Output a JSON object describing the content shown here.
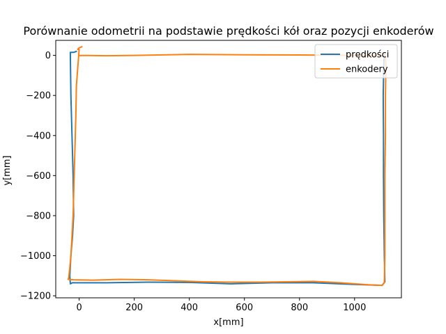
{
  "chart_data": {
    "type": "line",
    "title": "Porównanie odometrii na podstawie prędkości kół oraz pozycji enkoderów",
    "xlabel": "x[mm]",
    "ylabel": "y[mm]",
    "xlim": [
      -85,
      1170
    ],
    "ylim": [
      -1210,
      75
    ],
    "xticks": [
      0,
      200,
      400,
      600,
      800,
      1000
    ],
    "yticks": [
      -1200,
      -1000,
      -800,
      -600,
      -400,
      -200,
      0
    ],
    "legend_position": "upper right",
    "grid": false,
    "series": [
      {
        "name": "prędkości",
        "color": "#1f77b4",
        "points": [
          [
            -10,
            20
          ],
          [
            -20,
            15
          ],
          [
            -32,
            15
          ],
          [
            -32,
            0
          ],
          [
            -30,
            -200
          ],
          [
            -26,
            -400
          ],
          [
            -22,
            -600
          ],
          [
            -20,
            -800
          ],
          [
            -24,
            -900
          ],
          [
            -30,
            -1000
          ],
          [
            -34,
            -1100
          ],
          [
            -32,
            -1140
          ],
          [
            -25,
            -1135
          ],
          [
            100,
            -1135
          ],
          [
            250,
            -1132
          ],
          [
            400,
            -1133
          ],
          [
            550,
            -1140
          ],
          [
            700,
            -1135
          ],
          [
            850,
            -1135
          ],
          [
            1000,
            -1143
          ],
          [
            1100,
            -1148
          ],
          [
            1110,
            -1130
          ],
          [
            1108,
            -1000
          ],
          [
            1106,
            -800
          ],
          [
            1105,
            -600
          ],
          [
            1105,
            -400
          ],
          [
            1104,
            -200
          ],
          [
            1106,
            -50
          ],
          [
            1108,
            10
          ]
        ]
      },
      {
        "name": "enkodery",
        "color": "#ff7f0e",
        "points": [
          [
            10,
            43
          ],
          [
            0,
            38
          ],
          [
            -5,
            30
          ],
          [
            0,
            30
          ],
          [
            -10,
            -150
          ],
          [
            -12,
            -300
          ],
          [
            -15,
            -450
          ],
          [
            -18,
            -600
          ],
          [
            -20,
            -700
          ],
          [
            -22,
            -800
          ],
          [
            -26,
            -900
          ],
          [
            -30,
            -1000
          ],
          [
            -34,
            -1060
          ],
          [
            -38,
            -1110
          ],
          [
            -40,
            -1118
          ],
          [
            -20,
            -1120
          ],
          [
            50,
            -1122
          ],
          [
            150,
            -1118
          ],
          [
            250,
            -1120
          ],
          [
            350,
            -1125
          ],
          [
            450,
            -1130
          ],
          [
            550,
            -1132
          ],
          [
            650,
            -1132
          ],
          [
            750,
            -1130
          ],
          [
            850,
            -1128
          ],
          [
            950,
            -1135
          ],
          [
            1050,
            -1145
          ],
          [
            1100,
            -1148
          ],
          [
            1108,
            -1135
          ],
          [
            1110,
            -1000
          ],
          [
            1110,
            -800
          ],
          [
            1110,
            -600
          ],
          [
            1112,
            -400
          ],
          [
            1112,
            -200
          ],
          [
            1114,
            -50
          ],
          [
            1112,
            0
          ],
          [
            1000,
            0
          ],
          [
            800,
            2
          ],
          [
            600,
            3
          ],
          [
            400,
            5
          ],
          [
            200,
            0
          ],
          [
            100,
            -2
          ],
          [
            0,
            0
          ]
        ]
      }
    ]
  }
}
